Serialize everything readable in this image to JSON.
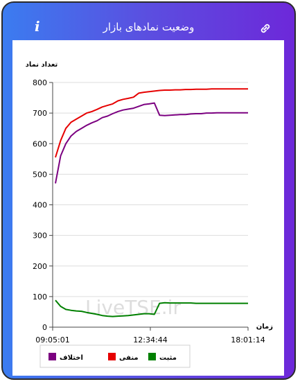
{
  "header": {
    "title": "وضعیت نمادهای بازار",
    "info_label": "i"
  },
  "chart_data": {
    "type": "line",
    "ylabel": "تعداد نماد",
    "xlabel": "زمان",
    "ylim": [
      0,
      800
    ],
    "y_ticks": [
      0,
      100,
      200,
      300,
      400,
      500,
      600,
      700,
      800
    ],
    "x_ticks": [
      "09:05:01",
      "12:34:44",
      "18:01:14"
    ],
    "watermark": "LiveTSE.ir",
    "legend_position": "bottom",
    "series": [
      {
        "name": "منفی",
        "color": "#e60000",
        "values": [
          555,
          610,
          650,
          670,
          680,
          690,
          700,
          705,
          712,
          720,
          725,
          730,
          740,
          745,
          748,
          752,
          765,
          768,
          770,
          772,
          774,
          775,
          775,
          776,
          776,
          777,
          777,
          778,
          778,
          778,
          779,
          779,
          779,
          779,
          779,
          779,
          779,
          779
        ]
      },
      {
        "name": "اختلاف",
        "color": "#7b0080",
        "values": [
          470,
          560,
          600,
          625,
          640,
          650,
          660,
          668,
          675,
          685,
          690,
          698,
          705,
          710,
          713,
          716,
          722,
          728,
          730,
          733,
          693,
          692,
          693,
          694,
          695,
          695,
          697,
          698,
          698,
          700,
          700,
          701,
          701,
          701,
          701,
          701,
          701,
          701
        ]
      },
      {
        "name": "مثبت",
        "color": "#008000",
        "values": [
          88,
          68,
          58,
          55,
          53,
          52,
          48,
          45,
          42,
          38,
          36,
          35,
          36,
          37,
          38,
          40,
          42,
          44,
          44,
          42,
          78,
          80,
          79,
          79,
          79,
          79,
          79,
          78,
          78,
          78,
          78,
          78,
          78,
          78,
          78,
          78,
          78,
          78
        ]
      }
    ]
  }
}
